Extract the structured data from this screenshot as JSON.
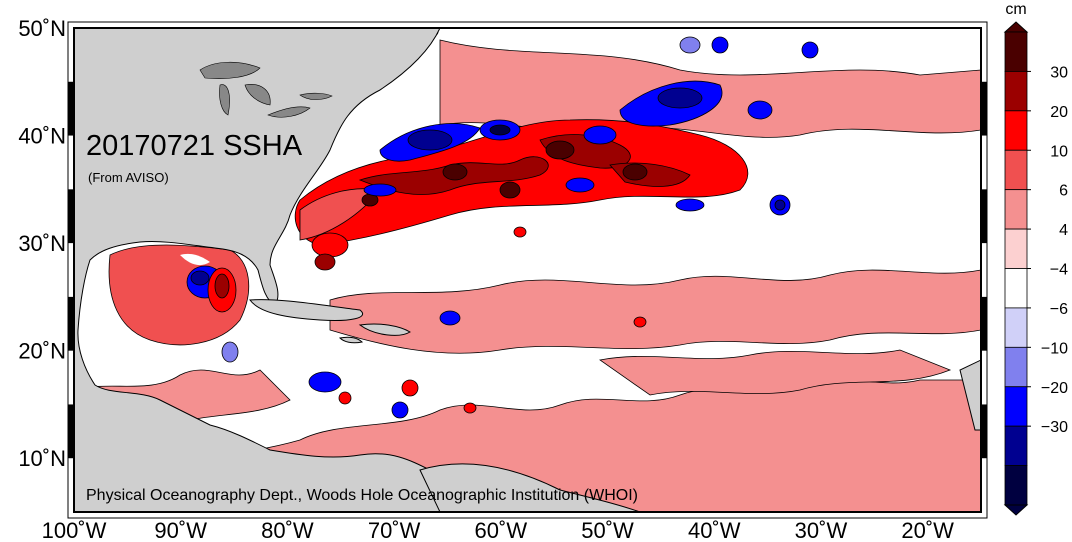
{
  "map": {
    "title": "20170721 SSHA",
    "subtitle": "(From AVISO)",
    "credit": "Physical Oceanography Dept., Woods Hole Oceanographic Institution (WHOI)",
    "extent": {
      "lon_min": -100,
      "lon_max": -15,
      "lat_min": 5,
      "lat_max": 50
    },
    "lon_ticks": [
      {
        "value": -100,
        "label": "100˚W"
      },
      {
        "value": -90,
        "label": "90˚W"
      },
      {
        "value": -80,
        "label": "80˚W"
      },
      {
        "value": -70,
        "label": "70˚W"
      },
      {
        "value": -60,
        "label": "60˚W"
      },
      {
        "value": -50,
        "label": "50˚W"
      },
      {
        "value": -40,
        "label": "40˚W"
      },
      {
        "value": -30,
        "label": "30˚W"
      },
      {
        "value": -20,
        "label": "20˚W"
      }
    ],
    "lat_ticks": [
      {
        "value": 50,
        "label": "50˚N"
      },
      {
        "value": 40,
        "label": "40˚N"
      },
      {
        "value": 30,
        "label": "30˚N"
      },
      {
        "value": 20,
        "label": "20˚N"
      },
      {
        "value": 10,
        "label": "10˚N"
      }
    ],
    "colors": {
      "land": "#cfcfcf",
      "ocean": "#ffffff",
      "land_outline": "#000000",
      "lakes": "#888888"
    }
  },
  "colorbar": {
    "unit": "cm",
    "tick_labels": [
      "30",
      "20",
      "10",
      "6",
      "4",
      "−4",
      "−6",
      "−10",
      "−20",
      "−30"
    ],
    "colors": [
      "#4a0000",
      "#9b0000",
      "#ff0000",
      "#f05050",
      "#f49090",
      "#fcd0d0",
      "#ffffff",
      "#d0d0f8",
      "#8080ee",
      "#0000ff",
      "#000090",
      "#000040"
    ]
  }
}
